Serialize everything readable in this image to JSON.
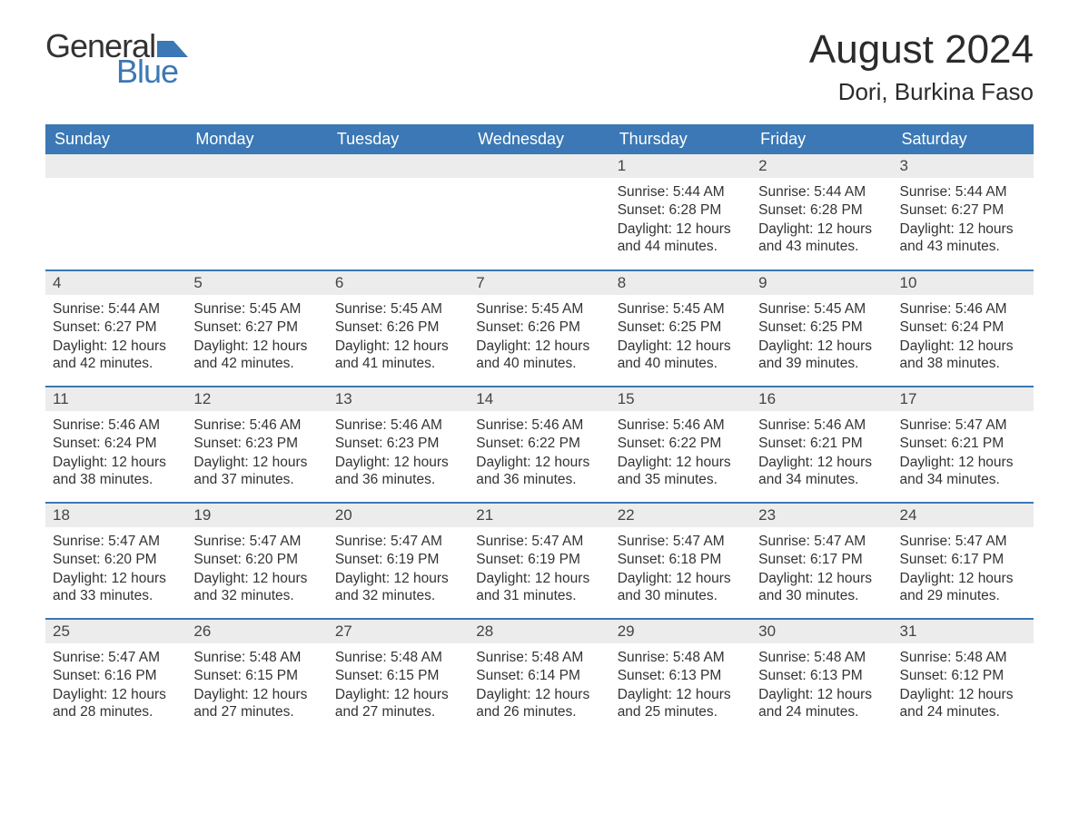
{
  "logo": {
    "text1": "General",
    "text2": "Blue"
  },
  "title": "August 2024",
  "location": "Dori, Burkina Faso",
  "colors": {
    "header_bg": "#3b78b5",
    "header_fg": "#ffffff",
    "daynum_bg": "#ececec",
    "text": "#333333",
    "logo_blue": "#3b78b5"
  },
  "weekdays": [
    "Sunday",
    "Monday",
    "Tuesday",
    "Wednesday",
    "Thursday",
    "Friday",
    "Saturday"
  ],
  "weeks": [
    [
      null,
      null,
      null,
      null,
      {
        "d": "1",
        "sr": "5:44 AM",
        "ss": "6:28 PM",
        "dl": "12 hours and 44 minutes."
      },
      {
        "d": "2",
        "sr": "5:44 AM",
        "ss": "6:28 PM",
        "dl": "12 hours and 43 minutes."
      },
      {
        "d": "3",
        "sr": "5:44 AM",
        "ss": "6:27 PM",
        "dl": "12 hours and 43 minutes."
      }
    ],
    [
      {
        "d": "4",
        "sr": "5:44 AM",
        "ss": "6:27 PM",
        "dl": "12 hours and 42 minutes."
      },
      {
        "d": "5",
        "sr": "5:45 AM",
        "ss": "6:27 PM",
        "dl": "12 hours and 42 minutes."
      },
      {
        "d": "6",
        "sr": "5:45 AM",
        "ss": "6:26 PM",
        "dl": "12 hours and 41 minutes."
      },
      {
        "d": "7",
        "sr": "5:45 AM",
        "ss": "6:26 PM",
        "dl": "12 hours and 40 minutes."
      },
      {
        "d": "8",
        "sr": "5:45 AM",
        "ss": "6:25 PM",
        "dl": "12 hours and 40 minutes."
      },
      {
        "d": "9",
        "sr": "5:45 AM",
        "ss": "6:25 PM",
        "dl": "12 hours and 39 minutes."
      },
      {
        "d": "10",
        "sr": "5:46 AM",
        "ss": "6:24 PM",
        "dl": "12 hours and 38 minutes."
      }
    ],
    [
      {
        "d": "11",
        "sr": "5:46 AM",
        "ss": "6:24 PM",
        "dl": "12 hours and 38 minutes."
      },
      {
        "d": "12",
        "sr": "5:46 AM",
        "ss": "6:23 PM",
        "dl": "12 hours and 37 minutes."
      },
      {
        "d": "13",
        "sr": "5:46 AM",
        "ss": "6:23 PM",
        "dl": "12 hours and 36 minutes."
      },
      {
        "d": "14",
        "sr": "5:46 AM",
        "ss": "6:22 PM",
        "dl": "12 hours and 36 minutes."
      },
      {
        "d": "15",
        "sr": "5:46 AM",
        "ss": "6:22 PM",
        "dl": "12 hours and 35 minutes."
      },
      {
        "d": "16",
        "sr": "5:46 AM",
        "ss": "6:21 PM",
        "dl": "12 hours and 34 minutes."
      },
      {
        "d": "17",
        "sr": "5:47 AM",
        "ss": "6:21 PM",
        "dl": "12 hours and 34 minutes."
      }
    ],
    [
      {
        "d": "18",
        "sr": "5:47 AM",
        "ss": "6:20 PM",
        "dl": "12 hours and 33 minutes."
      },
      {
        "d": "19",
        "sr": "5:47 AM",
        "ss": "6:20 PM",
        "dl": "12 hours and 32 minutes."
      },
      {
        "d": "20",
        "sr": "5:47 AM",
        "ss": "6:19 PM",
        "dl": "12 hours and 32 minutes."
      },
      {
        "d": "21",
        "sr": "5:47 AM",
        "ss": "6:19 PM",
        "dl": "12 hours and 31 minutes."
      },
      {
        "d": "22",
        "sr": "5:47 AM",
        "ss": "6:18 PM",
        "dl": "12 hours and 30 minutes."
      },
      {
        "d": "23",
        "sr": "5:47 AM",
        "ss": "6:17 PM",
        "dl": "12 hours and 30 minutes."
      },
      {
        "d": "24",
        "sr": "5:47 AM",
        "ss": "6:17 PM",
        "dl": "12 hours and 29 minutes."
      }
    ],
    [
      {
        "d": "25",
        "sr": "5:47 AM",
        "ss": "6:16 PM",
        "dl": "12 hours and 28 minutes."
      },
      {
        "d": "26",
        "sr": "5:48 AM",
        "ss": "6:15 PM",
        "dl": "12 hours and 27 minutes."
      },
      {
        "d": "27",
        "sr": "5:48 AM",
        "ss": "6:15 PM",
        "dl": "12 hours and 27 minutes."
      },
      {
        "d": "28",
        "sr": "5:48 AM",
        "ss": "6:14 PM",
        "dl": "12 hours and 26 minutes."
      },
      {
        "d": "29",
        "sr": "5:48 AM",
        "ss": "6:13 PM",
        "dl": "12 hours and 25 minutes."
      },
      {
        "d": "30",
        "sr": "5:48 AM",
        "ss": "6:13 PM",
        "dl": "12 hours and 24 minutes."
      },
      {
        "d": "31",
        "sr": "5:48 AM",
        "ss": "6:12 PM",
        "dl": "12 hours and 24 minutes."
      }
    ]
  ],
  "labels": {
    "sunrise": "Sunrise: ",
    "sunset": "Sunset: ",
    "daylight": "Daylight: "
  }
}
